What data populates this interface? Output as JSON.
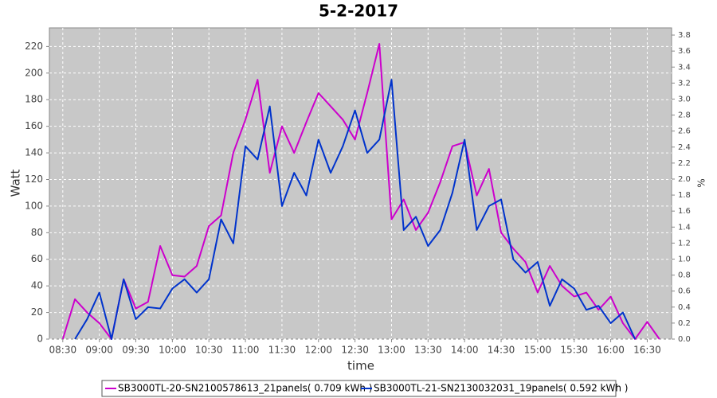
{
  "chart_data": {
    "type": "line",
    "title": "5-2-2017",
    "xlabel": "time",
    "ylabel": "Watt",
    "y2label": "%",
    "x": [
      "08:30",
      "08:40",
      "08:50",
      "09:00",
      "09:10",
      "09:20",
      "09:30",
      "09:40",
      "09:50",
      "10:00",
      "10:10",
      "10:20",
      "10:30",
      "10:40",
      "10:50",
      "11:00",
      "11:10",
      "11:20",
      "11:30",
      "11:40",
      "11:50",
      "12:00",
      "12:10",
      "12:20",
      "12:30",
      "12:40",
      "12:50",
      "13:00",
      "13:10",
      "13:20",
      "13:30",
      "13:40",
      "13:50",
      "14:00",
      "14:10",
      "14:20",
      "14:30",
      "14:40",
      "14:50",
      "15:00",
      "15:10",
      "15:20",
      "15:30",
      "15:40",
      "15:50",
      "16:00",
      "16:10",
      "16:20",
      "16:30",
      "16:40"
    ],
    "series": [
      {
        "name": "SB3000TL-20-SN2100578613_21panels( 0.709 kWh )",
        "color": "#cc00cc",
        "values": [
          0,
          30,
          20,
          12,
          0,
          45,
          23,
          28,
          70,
          48,
          47,
          55,
          85,
          93,
          140,
          165,
          195,
          125,
          160,
          140,
          163,
          185,
          175,
          165,
          150,
          185,
          222,
          90,
          105,
          82,
          95,
          118,
          145,
          148,
          108,
          128,
          80,
          68,
          58,
          35,
          55,
          40,
          32,
          35,
          22,
          32,
          12,
          0,
          13,
          0
        ]
      },
      {
        "name": "SB3000TL-21-SN2130032031_19panels( 0.592 kWh )",
        "color": "#0033cc",
        "values": [
          null,
          0,
          15,
          35,
          0,
          45,
          15,
          24,
          23,
          38,
          45,
          35,
          45,
          90,
          72,
          145,
          135,
          175,
          100,
          125,
          108,
          150,
          125,
          145,
          172,
          140,
          150,
          195,
          82,
          92,
          70,
          82,
          110,
          150,
          82,
          100,
          105,
          60,
          50,
          58,
          25,
          45,
          38,
          22,
          25,
          12,
          20,
          0,
          null,
          null
        ]
      }
    ],
    "xlim": [
      "08:19",
      "16:50"
    ],
    "xticks": [
      "08:30",
      "09:00",
      "09:30",
      "10:00",
      "10:30",
      "11:00",
      "11:30",
      "12:00",
      "12:30",
      "13:00",
      "13:30",
      "14:00",
      "14:30",
      "15:00",
      "15:30",
      "16:00",
      "16:30"
    ],
    "ylim": [
      0,
      234
    ],
    "yticks": [
      0,
      20,
      40,
      60,
      80,
      100,
      120,
      140,
      160,
      180,
      200,
      220
    ],
    "y2lim": [
      0,
      3.89
    ],
    "y2ticks": [
      {
        "value": 0,
        "label": "0.0"
      },
      0.2,
      0.4,
      0.6,
      0.8,
      {
        "value": 1,
        "label": "1.0"
      },
      1.2,
      1.4,
      1.6,
      1.8,
      {
        "value": 2,
        "label": "2.0"
      },
      2.2,
      2.4,
      2.6,
      2.8,
      {
        "value": 3,
        "label": "3.0"
      },
      3.2,
      3.4,
      3.6,
      3.8
    ],
    "grid": true,
    "legend": "bottom"
  }
}
